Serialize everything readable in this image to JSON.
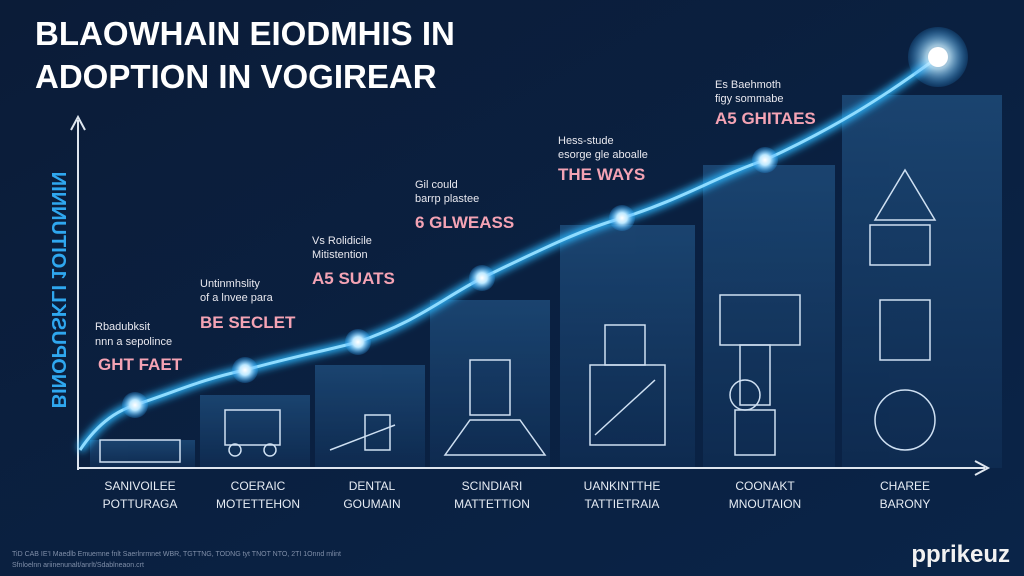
{
  "header": {
    "title_lines": [
      "BLAOWHAIN EIODMHIS IN",
      "ADOPTION IN VOGIREAR"
    ]
  },
  "y_axis_label": "BINOPUSKLI 1OITUNNIN",
  "steps": [
    {
      "lines": [
        "Rbadubksit",
        "nnn a sepolince"
      ],
      "headline": "GHT FAET"
    },
    {
      "lines": [
        "Untinmhslity",
        "of a lnvee para"
      ],
      "headline": "BE SECLET"
    },
    {
      "lines": [
        "Vs Rolidicile",
        "Mitistention"
      ],
      "headline": "A5 SUATS"
    },
    {
      "lines": [
        "Gil could",
        "barrp plastee"
      ],
      "headline": "6 GLWEASS"
    },
    {
      "lines": [
        "Hess-stude",
        "esorge gle aboalle"
      ],
      "headline": "THE WAYS"
    },
    {
      "lines": [
        "Es Baehmoth",
        "figy sommabe"
      ],
      "headline": "A5 GHITAES"
    }
  ],
  "categories": [
    [
      "SANIVOILEE",
      "POTTURAGA"
    ],
    [
      "COERAIC",
      "MOTETTEHON"
    ],
    [
      "DENTAL",
      "GOUMAIN"
    ],
    [
      "SCINDIARI",
      "MATTETTION"
    ],
    [
      "UANKINTTHE",
      "TATTIETRAIA"
    ],
    [
      "COONAKT",
      "MNOUTAION"
    ],
    [
      "CHAREE",
      "BARONY"
    ]
  ],
  "footer": [
    "TiD CAB IE'I Maedlb Emuemne fnlt Saerlnrmnet WBR, TGTTNG, TODNG tyt TNOT NTO, 2TI 1Onnd mlint",
    "Sfnloelnn ariinenunalt/anrlt/Sdablneaon.crt"
  ],
  "logo": "pprikeuz"
}
